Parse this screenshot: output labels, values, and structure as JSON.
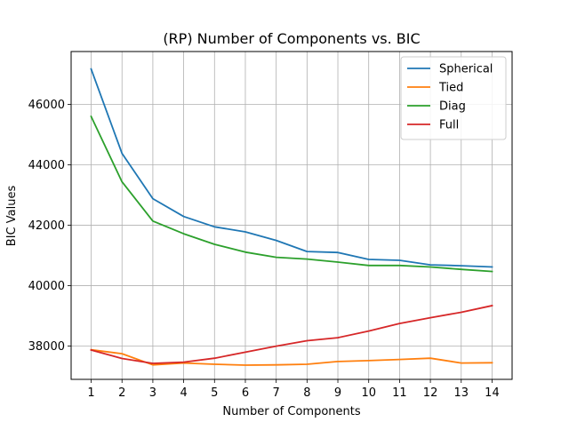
{
  "chart_data": {
    "type": "line",
    "title": "(RP) Number of Components vs. BIC",
    "xlabel": "Number of Components",
    "ylabel": "BIC Values",
    "x": [
      1,
      2,
      3,
      4,
      5,
      6,
      7,
      8,
      9,
      10,
      11,
      12,
      13,
      14
    ],
    "xlim": [
      0.35,
      14.65
    ],
    "ylim": [
      36900,
      47750
    ],
    "yticks": [
      38000,
      40000,
      42000,
      44000,
      46000
    ],
    "grid": true,
    "legend": "top-right",
    "series": [
      {
        "name": "Spherical",
        "color": "#1f77b4",
        "values": [
          47170,
          44380,
          42880,
          42290,
          41950,
          41780,
          41500,
          41130,
          41100,
          40870,
          40840,
          40690,
          40660,
          40620
        ]
      },
      {
        "name": "Tied",
        "color": "#ff7f0e",
        "values": [
          37880,
          37750,
          37380,
          37440,
          37400,
          37370,
          37380,
          37400,
          37490,
          37520,
          37560,
          37600,
          37440,
          37450
        ]
      },
      {
        "name": "Diag",
        "color": "#2ca02c",
        "values": [
          45600,
          43440,
          42140,
          41720,
          41370,
          41110,
          40940,
          40880,
          40780,
          40670,
          40670,
          40620,
          40540,
          40470
        ]
      },
      {
        "name": "Full",
        "color": "#d62728",
        "values": [
          37870,
          37590,
          37430,
          37470,
          37600,
          37800,
          38000,
          38180,
          38280,
          38500,
          38750,
          38940,
          39120,
          39340
        ]
      }
    ]
  }
}
